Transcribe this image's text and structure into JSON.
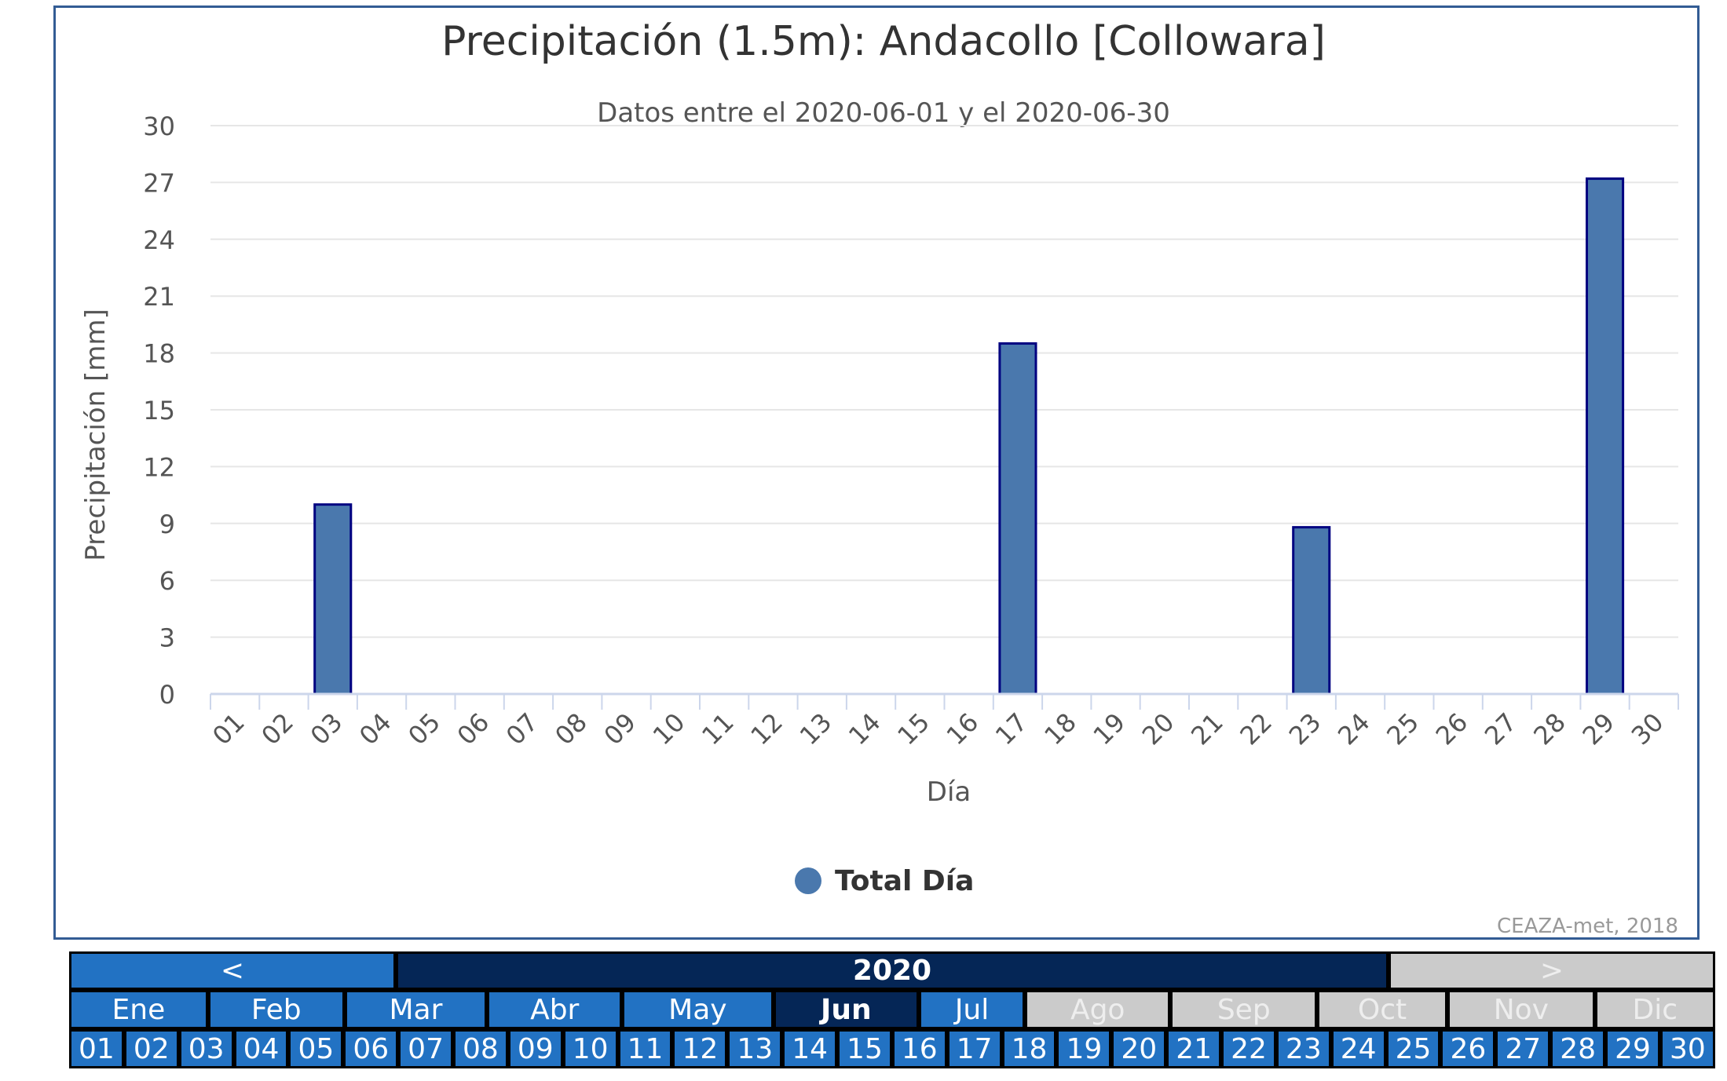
{
  "chart_data": {
    "type": "bar",
    "title": "Precipitación (1.5m): Andacollo [Collowara]",
    "subtitle": "Datos entre el 2020-06-01 y el 2020-06-30",
    "xlabel": "Día",
    "ylabel": "Precipitación [mm]",
    "ylim": [
      0,
      30
    ],
    "yticks": [
      "0",
      "3",
      "6",
      "9",
      "12",
      "15",
      "18",
      "21",
      "24",
      "27",
      "30"
    ],
    "categories": [
      "01",
      "02",
      "03",
      "04",
      "05",
      "06",
      "07",
      "08",
      "09",
      "10",
      "11",
      "12",
      "13",
      "14",
      "15",
      "16",
      "17",
      "18",
      "19",
      "20",
      "21",
      "22",
      "23",
      "24",
      "25",
      "26",
      "27",
      "28",
      "29",
      "30"
    ],
    "series": [
      {
        "name": "Total Día",
        "color": "#4a78ad",
        "values": [
          0,
          0,
          10,
          0,
          0,
          0,
          0,
          0,
          0,
          0,
          0,
          0,
          0,
          0,
          0,
          0,
          18.5,
          0,
          0,
          0,
          0,
          0,
          8.8,
          0,
          0,
          0,
          0,
          0,
          27.2,
          0
        ]
      }
    ],
    "grid": true,
    "legend": "bottom-center",
    "credit": "CEAZA-met, 2018"
  },
  "nav": {
    "prev": "<",
    "year": "2020",
    "next": ">",
    "months": [
      {
        "label": "Ene",
        "state": "active"
      },
      {
        "label": "Feb",
        "state": "active"
      },
      {
        "label": "Mar",
        "state": "active"
      },
      {
        "label": "Abr",
        "state": "active"
      },
      {
        "label": "May",
        "state": "active"
      },
      {
        "label": "Jun",
        "state": "selected"
      },
      {
        "label": "Jul",
        "state": "active"
      },
      {
        "label": "Ago",
        "state": "disabled"
      },
      {
        "label": "Sep",
        "state": "disabled"
      },
      {
        "label": "Oct",
        "state": "disabled"
      },
      {
        "label": "Nov",
        "state": "disabled"
      },
      {
        "label": "Dic",
        "state": "disabled"
      }
    ],
    "days": [
      "01",
      "02",
      "03",
      "04",
      "05",
      "06",
      "07",
      "08",
      "09",
      "10",
      "11",
      "12",
      "13",
      "14",
      "15",
      "16",
      "17",
      "18",
      "19",
      "20",
      "21",
      "22",
      "23",
      "24",
      "25",
      "26",
      "27",
      "28",
      "29",
      "30"
    ]
  }
}
